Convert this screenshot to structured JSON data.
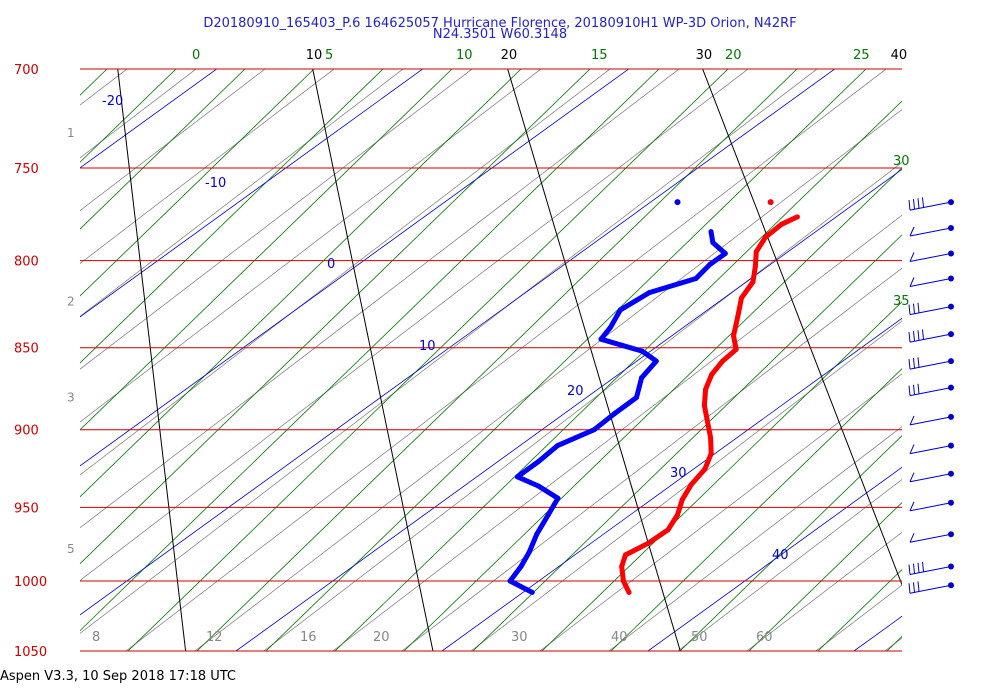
{
  "title_line1": "D20180910_165403_P.6 164625057 Hurricane Florence, 20180910H1 WP-3D Orion, N42RF",
  "title_line2": "N24.3501 W60.3148",
  "footer": "Aspen V3.3, 10 Sep 2018  17:18 UTC",
  "colors": {
    "isobar": "#cc0000",
    "isotherm": "#000000",
    "dry_adiabat": "#888888",
    "moist_adiabat": "#007700",
    "mixing_ratio": "#0000cc",
    "temperature_trace": "#ff0000",
    "dewpoint_trace": "#0000ff",
    "height_label": "#888888"
  },
  "chart_data": {
    "type": "line",
    "diagram": "skew-T log-P",
    "pressure_range_hPa": [
      1050,
      700
    ],
    "isobars_hPa": [
      {
        "p": 700,
        "label": "700"
      },
      {
        "p": 750,
        "label": "750"
      },
      {
        "p": 800,
        "label": "800"
      },
      {
        "p": 850,
        "label": "850"
      },
      {
        "p": 900,
        "label": "900"
      },
      {
        "p": 950,
        "label": "950"
      },
      {
        "p": 1000,
        "label": "1000"
      },
      {
        "p": 1050,
        "label": "1050"
      }
    ],
    "height_labels_km": [
      {
        "p": 732,
        "label": "1"
      },
      {
        "p": 823,
        "label": "2"
      },
      {
        "p": 880,
        "label": "3"
      },
      {
        "p": 978,
        "label": "5"
      }
    ],
    "isotherms_C": [
      {
        "t": 10,
        "label": "10"
      },
      {
        "t": 20,
        "label": "20"
      },
      {
        "t": 30,
        "label": "30"
      },
      {
        "t": 40,
        "label": "40"
      }
    ],
    "dry_adiabat_labels": [
      {
        "t": 8,
        "label": "8"
      },
      {
        "t": 12,
        "label": "12"
      },
      {
        "t": 16,
        "label": "16"
      },
      {
        "t": 20,
        "label": "20"
      },
      {
        "t": 30,
        "label": "30"
      },
      {
        "t": 40,
        "label": "40"
      },
      {
        "t": 50,
        "label": "50"
      },
      {
        "t": 60,
        "label": "60"
      }
    ],
    "moist_adiabats": [
      {
        "label": "0"
      },
      {
        "label": "5"
      },
      {
        "label": "10"
      },
      {
        "label": "15"
      },
      {
        "label": "20"
      },
      {
        "label": "25"
      },
      {
        "label": "30"
      },
      {
        "label": "35"
      }
    ],
    "mixing_ratio_labels": [
      {
        "label": "-20"
      },
      {
        "label": "-10"
      },
      {
        "label": "0"
      },
      {
        "label": "10"
      },
      {
        "label": "20"
      },
      {
        "label": "30"
      },
      {
        "label": "40"
      }
    ],
    "series": [
      {
        "key": "temperature",
        "points": [
          {
            "p": 1008,
            "t": 18.6
          },
          {
            "p": 1000,
            "t": 18.5
          },
          {
            "p": 990,
            "t": 18.6
          },
          {
            "p": 982,
            "t": 18.9
          },
          {
            "p": 974,
            "t": 20.0
          },
          {
            "p": 965,
            "t": 21.0
          },
          {
            "p": 955,
            "t": 21.6
          },
          {
            "p": 945,
            "t": 22.0
          },
          {
            "p": 935,
            "t": 22.6
          },
          {
            "p": 925,
            "t": 23.4
          },
          {
            "p": 915,
            "t": 23.9
          },
          {
            "p": 905,
            "t": 24.1
          },
          {
            "p": 895,
            "t": 24.2
          },
          {
            "p": 885,
            "t": 24.3
          },
          {
            "p": 875,
            "t": 24.6
          },
          {
            "p": 866,
            "t": 25.1
          },
          {
            "p": 858,
            "t": 25.8
          },
          {
            "p": 851,
            "t": 26.6
          },
          {
            "p": 843,
            "t": 26.7
          },
          {
            "p": 832,
            "t": 27.2
          },
          {
            "p": 821,
            "t": 27.7
          },
          {
            "p": 812,
            "t": 28.5
          },
          {
            "p": 803,
            "t": 28.9
          },
          {
            "p": 795,
            "t": 29.2
          },
          {
            "p": 787,
            "t": 29.9
          },
          {
            "p": 780,
            "t": 30.9
          },
          {
            "p": 776,
            "t": 31.8
          }
        ]
      },
      {
        "key": "dewpoint",
        "points": [
          {
            "p": 1008,
            "t": 14.6
          },
          {
            "p": 1000,
            "t": 13.8
          },
          {
            "p": 990,
            "t": 14.4
          },
          {
            "p": 980,
            "t": 14.9
          },
          {
            "p": 968,
            "t": 15.4
          },
          {
            "p": 955,
            "t": 16.1
          },
          {
            "p": 944,
            "t": 16.7
          },
          {
            "p": 936,
            "t": 16.0
          },
          {
            "p": 930,
            "t": 15.2
          },
          {
            "p": 920,
            "t": 16.3
          },
          {
            "p": 910,
            "t": 17.3
          },
          {
            "p": 900,
            "t": 19.1
          },
          {
            "p": 890,
            "t": 20.2
          },
          {
            "p": 880,
            "t": 21.4
          },
          {
            "p": 868,
            "t": 21.9
          },
          {
            "p": 858,
            "t": 22.8
          },
          {
            "p": 852,
            "t": 22.3
          },
          {
            "p": 845,
            "t": 20.6
          },
          {
            "p": 838,
            "t": 21.2
          },
          {
            "p": 828,
            "t": 21.9
          },
          {
            "p": 818,
            "t": 23.5
          },
          {
            "p": 810,
            "t": 25.9
          },
          {
            "p": 802,
            "t": 26.8
          },
          {
            "p": 796,
            "t": 27.7
          },
          {
            "p": 790,
            "t": 27.3
          },
          {
            "p": 784,
            "t": 27.4
          }
        ]
      }
    ],
    "surface_markers": [
      {
        "key": "dewpoint",
        "p": 768,
        "t": 26.3
      },
      {
        "key": "temperature",
        "p": 768,
        "t": 30.8
      }
    ],
    "wind_barbs": [
      {
        "p": 768,
        "knots": 40
      },
      {
        "p": 782,
        "knots": 5
      },
      {
        "p": 796,
        "knots": 5
      },
      {
        "p": 810,
        "knots": 5
      },
      {
        "p": 826,
        "knots": 30
      },
      {
        "p": 842,
        "knots": 35
      },
      {
        "p": 858,
        "knots": 30
      },
      {
        "p": 874,
        "knots": 30
      },
      {
        "p": 892,
        "knots": 5
      },
      {
        "p": 910,
        "knots": 5
      },
      {
        "p": 928,
        "knots": 5
      },
      {
        "p": 947,
        "knots": 5
      },
      {
        "p": 968,
        "knots": 5
      },
      {
        "p": 990,
        "knots": 40
      },
      {
        "p": 1003,
        "knots": 25
      }
    ]
  }
}
